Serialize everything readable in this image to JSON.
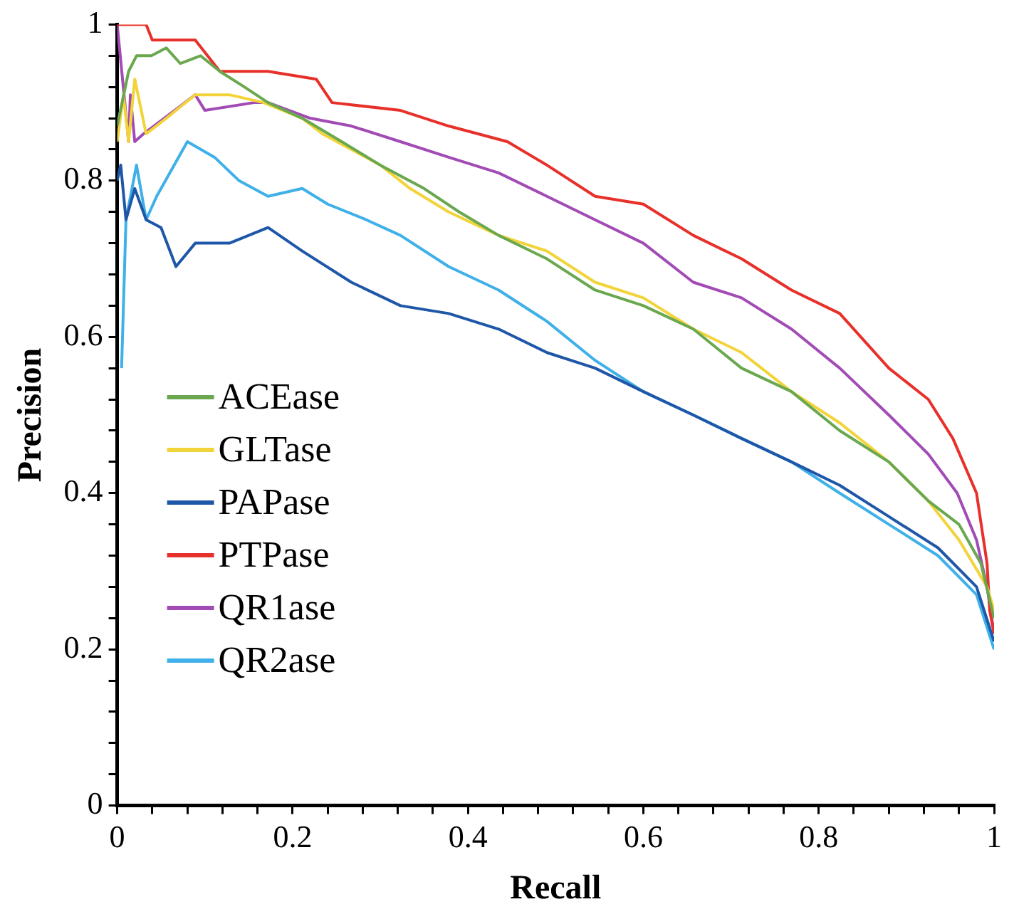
{
  "chart_data": {
    "type": "line",
    "xlabel": "Recall",
    "ylabel": "Precision",
    "xlim": [
      0,
      1
    ],
    "ylim": [
      0,
      1
    ],
    "xticks": [
      0,
      {
        "value": 0.04,
        "label": null
      },
      {
        "value": 0.08,
        "label": null
      },
      {
        "value": 0.12,
        "label": null
      },
      {
        "value": 0.16,
        "label": null
      },
      0.2,
      {
        "value": 0.24,
        "label": null
      },
      {
        "value": 0.28,
        "label": null
      },
      {
        "value": 0.32,
        "label": null
      },
      {
        "value": 0.36,
        "label": null
      },
      0.4,
      {
        "value": 0.44,
        "label": null
      },
      {
        "value": 0.48,
        "label": null
      },
      {
        "value": 0.52,
        "label": null
      },
      {
        "value": 0.56,
        "label": null
      },
      0.6,
      {
        "value": 0.64,
        "label": null
      },
      {
        "value": 0.68,
        "label": null
      },
      {
        "value": 0.72,
        "label": null
      },
      {
        "value": 0.76,
        "label": null
      },
      0.8,
      {
        "value": 0.84,
        "label": null
      },
      {
        "value": 0.88,
        "label": null
      },
      {
        "value": 0.92,
        "label": null
      },
      {
        "value": 0.96,
        "label": null
      },
      1
    ],
    "yticks": [
      0,
      {
        "value": 0.04,
        "label": null
      },
      {
        "value": 0.08,
        "label": null
      },
      {
        "value": 0.12,
        "label": null
      },
      {
        "value": 0.16,
        "label": null
      },
      0.2,
      {
        "value": 0.24,
        "label": null
      },
      {
        "value": 0.28,
        "label": null
      },
      {
        "value": 0.32,
        "label": null
      },
      {
        "value": 0.36,
        "label": null
      },
      0.4,
      {
        "value": 0.44,
        "label": null
      },
      {
        "value": 0.48,
        "label": null
      },
      {
        "value": 0.52,
        "label": null
      },
      {
        "value": 0.56,
        "label": null
      },
      0.6,
      {
        "value": 0.64,
        "label": null
      },
      {
        "value": 0.68,
        "label": null
      },
      {
        "value": 0.72,
        "label": null
      },
      {
        "value": 0.76,
        "label": null
      },
      0.8,
      {
        "value": 0.84,
        "label": null
      },
      {
        "value": 0.88,
        "label": null
      },
      {
        "value": 0.92,
        "label": null
      },
      {
        "value": 0.96,
        "label": null
      },
      1
    ],
    "grid": false,
    "legend": "left",
    "marker": "none",
    "line_style": "solid",
    "series": [
      {
        "name": "ACEase",
        "color": "#6aa84f",
        "x": [
          0,
          0.013,
          0.022,
          0.039,
          0.056,
          0.072,
          0.095,
          0.117,
          0.145,
          0.172,
          0.211,
          0.256,
          0.3,
          0.35,
          0.39,
          0.435,
          0.49,
          0.545,
          0.6,
          0.657,
          0.712,
          0.769,
          0.824,
          0.88,
          0.925,
          0.96,
          0.985,
          1
        ],
        "values": [
          0.87,
          0.94,
          0.96,
          0.96,
          0.97,
          0.95,
          0.96,
          0.94,
          0.92,
          0.9,
          0.88,
          0.85,
          0.82,
          0.79,
          0.76,
          0.73,
          0.7,
          0.66,
          0.64,
          0.61,
          0.56,
          0.53,
          0.48,
          0.44,
          0.39,
          0.36,
          0.31,
          0.24
        ]
      },
      {
        "name": "GLTase",
        "color": "#f2d43a",
        "x": [
          0,
          0.007,
          0.013,
          0.02,
          0.033,
          0.056,
          0.089,
          0.128,
          0.167,
          0.211,
          0.234,
          0.267,
          0.3,
          0.334,
          0.378,
          0.435,
          0.49,
          0.545,
          0.6,
          0.657,
          0.712,
          0.769,
          0.824,
          0.88,
          0.925,
          0.96,
          0.992,
          1
        ],
        "values": [
          0.85,
          0.91,
          0.85,
          0.93,
          0.86,
          0.88,
          0.91,
          0.91,
          0.9,
          0.88,
          0.86,
          0.84,
          0.82,
          0.79,
          0.76,
          0.73,
          0.71,
          0.67,
          0.65,
          0.61,
          0.58,
          0.53,
          0.49,
          0.44,
          0.39,
          0.34,
          0.28,
          0.25
        ]
      },
      {
        "name": "PAPase",
        "color": "#1f57a8",
        "x": [
          0,
          0.004,
          0.01,
          0.02,
          0.033,
          0.05,
          0.067,
          0.089,
          0.128,
          0.172,
          0.211,
          0.267,
          0.323,
          0.378,
          0.435,
          0.49,
          0.545,
          0.6,
          0.657,
          0.712,
          0.769,
          0.824,
          0.88,
          0.936,
          0.98,
          1
        ],
        "values": [
          0.8,
          0.82,
          0.75,
          0.79,
          0.75,
          0.74,
          0.69,
          0.72,
          0.72,
          0.74,
          0.71,
          0.67,
          0.64,
          0.63,
          0.61,
          0.58,
          0.56,
          0.53,
          0.5,
          0.47,
          0.44,
          0.41,
          0.37,
          0.33,
          0.28,
          0.21
        ]
      },
      {
        "name": "PTPase",
        "color": "#e8302a",
        "x": [
          0,
          0.033,
          0.04,
          0.089,
          0.117,
          0.172,
          0.227,
          0.245,
          0.323,
          0.378,
          0.445,
          0.49,
          0.545,
          0.6,
          0.657,
          0.712,
          0.769,
          0.824,
          0.88,
          0.925,
          0.953,
          0.98,
          0.992,
          0.995,
          1
        ],
        "values": [
          1,
          1,
          0.98,
          0.98,
          0.94,
          0.94,
          0.93,
          0.9,
          0.89,
          0.87,
          0.85,
          0.82,
          0.78,
          0.77,
          0.73,
          0.7,
          0.66,
          0.63,
          0.56,
          0.52,
          0.47,
          0.4,
          0.31,
          0.25,
          0.22
        ]
      },
      {
        "name": "QR1ase",
        "color": "#a24bb5",
        "x": [
          0,
          0.013,
          0.015,
          0.02,
          0.03,
          0.089,
          0.1,
          0.156,
          0.172,
          0.22,
          0.267,
          0.323,
          0.378,
          0.435,
          0.49,
          0.545,
          0.6,
          0.657,
          0.712,
          0.769,
          0.824,
          0.88,
          0.925,
          0.958,
          0.98,
          0.992,
          1
        ],
        "values": [
          1,
          0.85,
          0.91,
          0.85,
          0.86,
          0.91,
          0.89,
          0.9,
          0.9,
          0.88,
          0.87,
          0.85,
          0.83,
          0.81,
          0.78,
          0.75,
          0.72,
          0.67,
          0.65,
          0.61,
          0.56,
          0.5,
          0.45,
          0.4,
          0.34,
          0.28,
          0.22
        ]
      },
      {
        "name": "QR2ase",
        "color": "#3fb0e8",
        "x": [
          0.005,
          0.01,
          0.022,
          0.033,
          0.045,
          0.08,
          0.111,
          0.139,
          0.172,
          0.211,
          0.24,
          0.284,
          0.323,
          0.378,
          0.435,
          0.49,
          0.545,
          0.6,
          0.657,
          0.712,
          0.769,
          0.824,
          0.88,
          0.936,
          0.98,
          1
        ],
        "values": [
          0.56,
          0.75,
          0.82,
          0.75,
          0.78,
          0.85,
          0.83,
          0.8,
          0.78,
          0.79,
          0.77,
          0.75,
          0.73,
          0.69,
          0.66,
          0.62,
          0.57,
          0.53,
          0.5,
          0.47,
          0.44,
          0.4,
          0.36,
          0.32,
          0.27,
          0.2
        ]
      }
    ]
  }
}
